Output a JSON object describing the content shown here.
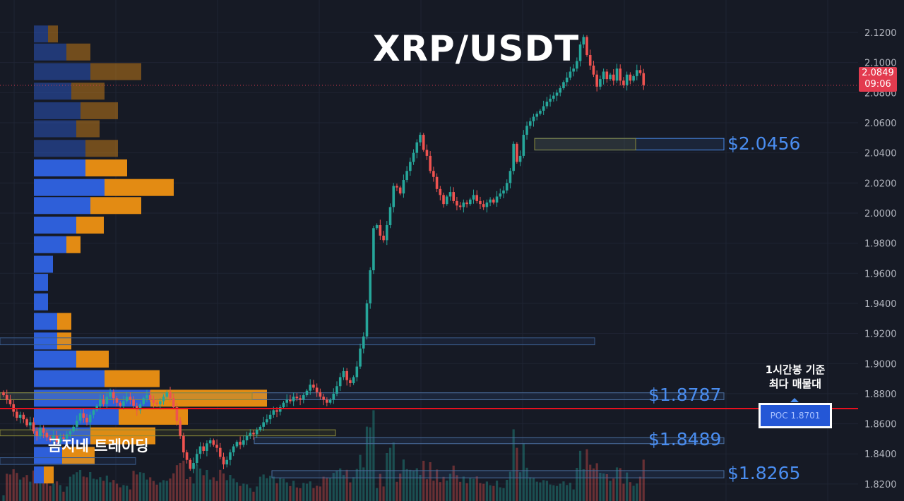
{
  "chart_data": {
    "type": "candlestick",
    "title": "XRP/USDT",
    "symbol": "XRP/USDT",
    "y_axis": {
      "ticks": [
        "2.1200",
        "2.1000",
        "2.0800",
        "2.0600",
        "2.0400",
        "2.0200",
        "2.0000",
        "1.9800",
        "1.9600",
        "1.9400",
        "1.9200",
        "1.9000",
        "1.8800",
        "1.8600",
        "1.8400",
        "1.8200"
      ],
      "ylim": [
        1.8087,
        2.1275
      ]
    },
    "current_price": {
      "value": "2.0849",
      "countdown": "09:06"
    },
    "closes": [
      1.879,
      1.876,
      1.873,
      1.868,
      1.864,
      1.866,
      1.863,
      1.859,
      1.861,
      1.855,
      1.852,
      1.857,
      1.854,
      1.851,
      1.849,
      1.852,
      1.848,
      1.851,
      1.85,
      1.853,
      1.855,
      1.858,
      1.862,
      1.867,
      1.864,
      1.861,
      1.866,
      1.869,
      1.872,
      1.876,
      1.873,
      1.878,
      1.881,
      1.877,
      1.874,
      1.872,
      1.875,
      1.878,
      1.876,
      1.872,
      1.869,
      1.873,
      1.877,
      1.879,
      1.876,
      1.874,
      1.873,
      1.875,
      1.878,
      1.881,
      1.877,
      1.871,
      1.862,
      1.852,
      1.841,
      1.836,
      1.83,
      1.834,
      1.84,
      1.845,
      1.842,
      1.847,
      1.849,
      1.846,
      1.844,
      1.838,
      1.833,
      1.836,
      1.841,
      1.845,
      1.848,
      1.846,
      1.849,
      1.852,
      1.854,
      1.853,
      1.856,
      1.858,
      1.861,
      1.863,
      1.866,
      1.869,
      1.868,
      1.871,
      1.874,
      1.876,
      1.875,
      1.878,
      1.877,
      1.876,
      1.879,
      1.882,
      1.886,
      1.884,
      1.881,
      1.878,
      1.876,
      1.874,
      1.876,
      1.88,
      1.885,
      1.891,
      1.895,
      1.889,
      1.887,
      1.891,
      1.898,
      1.91,
      1.918,
      1.94,
      1.962,
      1.99,
      1.992,
      1.985,
      1.982,
      1.992,
      2.004,
      2.018,
      2.017,
      2.013,
      2.022,
      2.028,
      2.034,
      2.04,
      2.047,
      2.052,
      2.042,
      2.038,
      2.028,
      2.024,
      2.016,
      2.012,
      2.006,
      2.011,
      2.014,
      2.008,
      2.005,
      2.004,
      2.007,
      2.006,
      2.009,
      2.012,
      2.008,
      2.006,
      2.004,
      2.007,
      2.009,
      2.007,
      2.011,
      2.013,
      2.015,
      2.02,
      2.028,
      2.046,
      2.034,
      2.038,
      2.052,
      2.058,
      2.061,
      2.064,
      2.066,
      2.068,
      2.071,
      2.074,
      2.076,
      2.078,
      2.08,
      2.083,
      2.087,
      2.09,
      2.094,
      2.096,
      2.101,
      2.112,
      2.117,
      2.105,
      2.098,
      2.092,
      2.084,
      2.089,
      2.094,
      2.089,
      2.092,
      2.088,
      2.096,
      2.088,
      2.085,
      2.092,
      2.088,
      2.091,
      2.095,
      2.093,
      2.085
    ],
    "volume_profile": [
      {
        "price": 2.119,
        "buy": 20,
        "sell": 14
      },
      {
        "price": 2.107,
        "buy": 46,
        "sell": 34
      },
      {
        "price": 2.094,
        "buy": 80,
        "sell": 72
      },
      {
        "price": 2.081,
        "buy": 53,
        "sell": 47
      },
      {
        "price": 2.068,
        "buy": 66,
        "sell": 53
      },
      {
        "price": 2.056,
        "buy": 60,
        "sell": 33
      },
      {
        "price": 2.043,
        "buy": 73,
        "sell": 46
      },
      {
        "price": 2.03,
        "buy": 73,
        "sell": 59
      },
      {
        "price": 2.017,
        "buy": 100,
        "sell": 98
      },
      {
        "price": 2.005,
        "buy": 80,
        "sell": 72
      },
      {
        "price": 1.992,
        "buy": 60,
        "sell": 39
      },
      {
        "price": 1.979,
        "buy": 46,
        "sell": 20
      },
      {
        "price": 1.966,
        "buy": 27,
        "sell": 0
      },
      {
        "price": 1.954,
        "buy": 20,
        "sell": 0
      },
      {
        "price": 1.941,
        "buy": 20,
        "sell": 0
      },
      {
        "price": 1.928,
        "buy": 33,
        "sell": 20
      },
      {
        "price": 1.915,
        "buy": 33,
        "sell": 20
      },
      {
        "price": 1.903,
        "buy": 60,
        "sell": 46
      },
      {
        "price": 1.89,
        "buy": 100,
        "sell": 78
      },
      {
        "price": 1.877,
        "buy": 165,
        "sell": 165
      },
      {
        "price": 1.865,
        "buy": 120,
        "sell": 98
      },
      {
        "price": 1.852,
        "buy": 80,
        "sell": 92
      },
      {
        "price": 1.839,
        "buy": 40,
        "sell": 46
      },
      {
        "price": 1.826,
        "buy": 14,
        "sell": 14
      }
    ],
    "levels": [
      {
        "price": 2.0456,
        "label": "$2.0456"
      },
      {
        "price": 1.8787,
        "label": "$1.8787"
      },
      {
        "price": 1.8489,
        "label": "$1.8489"
      },
      {
        "price": 1.8265,
        "label": "$1.8265"
      }
    ],
    "poc": {
      "price": 1.8701,
      "label": "POC  1.8701"
    },
    "note": [
      "1시간봉 기준",
      "최다 매물대"
    ],
    "watermark": "곰지네 트레이딩",
    "colors": {
      "up": "#26a69a",
      "down": "#ef5350",
      "buy": "#2e5fd9",
      "sell": "#e38b13",
      "poc_line": "#e8111f",
      "level": "#4a8df0",
      "bg": "#161a25"
    }
  }
}
